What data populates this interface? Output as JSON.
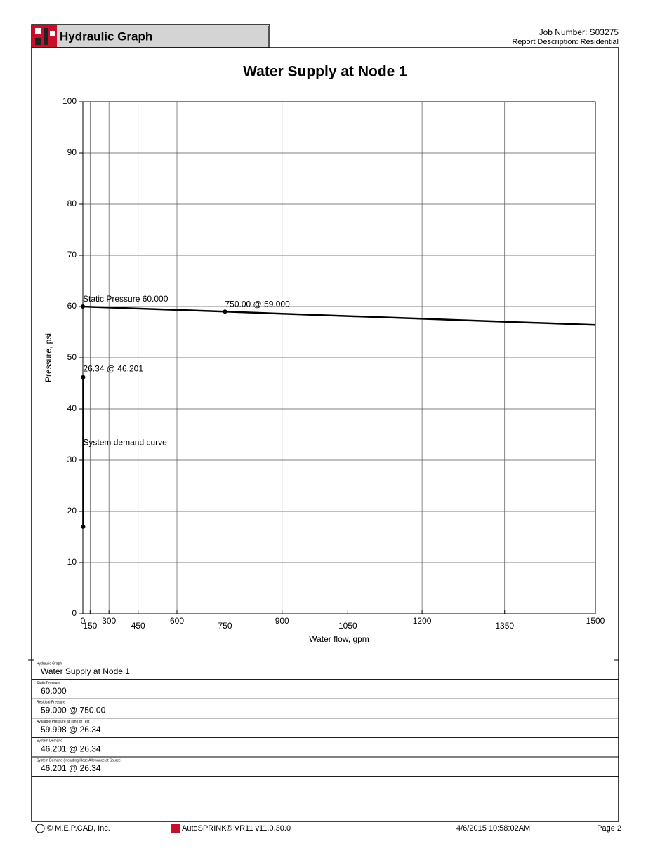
{
  "header": {
    "title": "Hydraulic Graph",
    "job_number": "Job Number: S03275",
    "report_description": "Report Description: Residential"
  },
  "chart_data": {
    "type": "line",
    "title": "Water Supply at Node 1",
    "x_label": "Water flow, gpm",
    "y_label": "Pressure, psi",
    "xlim": [
      0,
      1500
    ],
    "ylim": [
      0,
      100
    ],
    "x_scale_exponent": 1.85,
    "xticks": [
      0,
      150,
      300,
      450,
      600,
      750,
      900,
      1050,
      1200,
      1350,
      1500
    ],
    "yticks": [
      0,
      10,
      20,
      30,
      40,
      50,
      60,
      70,
      80,
      90,
      100
    ],
    "grid": true,
    "series": [
      {
        "color": "#000000",
        "x": [
          0,
          750,
          1500
        ],
        "values": [
          60,
          59,
          56.4
        ]
      },
      {
        "color": "#000000",
        "x": [
          26.34,
          26.34
        ],
        "values": [
          17,
          46.201
        ]
      }
    ],
    "annotations": [
      "Static Pressure 60.000",
      "750.00 @ 59.000",
      "26.34 @ 46.201",
      "System demand curve"
    ]
  },
  "table": {
    "rows": [
      {
        "label": "Hydraulic Graph",
        "value": "Water Supply at Node 1"
      },
      {
        "label": "Static Pressure",
        "value": "60.000"
      },
      {
        "label": "Residual Pressure",
        "value": "59.000 @ 750.00"
      },
      {
        "label": "Available Pressure at Time of Test",
        "value": "59.998 @ 26.34"
      },
      {
        "label": "System Demand",
        "value": "46.201 @ 26.34"
      },
      {
        "label": "System Demand (Including Hose Allowance at Source)",
        "value": "46.201 @ 26.34"
      }
    ]
  },
  "footer": {
    "copyright": "© M.E.P.CAD, Inc.",
    "software": "AutoSPRINK® VR11 v11.0.30.0",
    "datetime": "4/6/2015  10:58:02AM",
    "page": "Page 2"
  }
}
